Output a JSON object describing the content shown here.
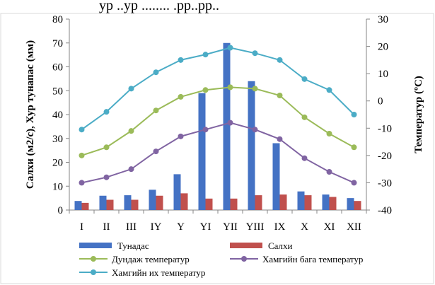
{
  "top_fragment": "ур ..ур ........ .рр..рр..",
  "chart_data": {
    "type": "bar",
    "categories": [
      "I",
      "II",
      "III",
      "IY",
      "Y",
      "YI",
      "YII",
      "YIII",
      "IX",
      "X",
      "XI",
      "XII"
    ],
    "series": [
      {
        "name": "Тунадас",
        "kind": "bar",
        "axis": "left",
        "color": "#4472C4",
        "values": [
          3.8,
          6.0,
          6.2,
          8.5,
          15.0,
          49.0,
          70.0,
          54.0,
          28.0,
          7.8,
          6.5,
          5.0
        ]
      },
      {
        "name": "Салхи",
        "kind": "bar",
        "axis": "left",
        "color": "#C0504D",
        "values": [
          3.0,
          4.3,
          4.3,
          6.0,
          7.0,
          4.8,
          4.8,
          6.2,
          6.5,
          6.2,
          5.5,
          3.8
        ]
      },
      {
        "name": "Дундаж температур",
        "kind": "line",
        "axis": "right",
        "color": "#9BBB59",
        "values": [
          -20.0,
          -17.0,
          -11.0,
          -3.5,
          1.5,
          4.0,
          5.0,
          4.5,
          2.0,
          -6.0,
          -12.0,
          -17.0
        ]
      },
      {
        "name": "Хамгийн бага температур",
        "kind": "line",
        "axis": "right",
        "color": "#8064A2",
        "values": [
          -30.0,
          -28.0,
          -25.0,
          -18.5,
          -13.0,
          -10.5,
          -8.0,
          -10.5,
          -14.0,
          -21.0,
          -26.0,
          -30.0
        ]
      },
      {
        "name": "Хамгийн их температур",
        "kind": "line",
        "axis": "right",
        "color": "#4BACC6",
        "values": [
          -10.5,
          -4.0,
          4.5,
          10.5,
          15.0,
          17.0,
          19.5,
          17.5,
          15.0,
          8.0,
          4.0,
          -5.0
        ]
      }
    ],
    "ylabel": "Салхи (м2/с), Хур тунапас (мм)",
    "y2label": "Температур (ºС)",
    "ylim": [
      0,
      80
    ],
    "yticks": [
      0,
      10,
      20,
      30,
      40,
      50,
      60,
      70,
      80
    ],
    "y2lim": [
      -40,
      30
    ],
    "y2ticks": [
      -40,
      -30,
      -20,
      -10,
      0,
      10,
      20,
      30
    ],
    "grid": false,
    "legend": "bottom"
  }
}
